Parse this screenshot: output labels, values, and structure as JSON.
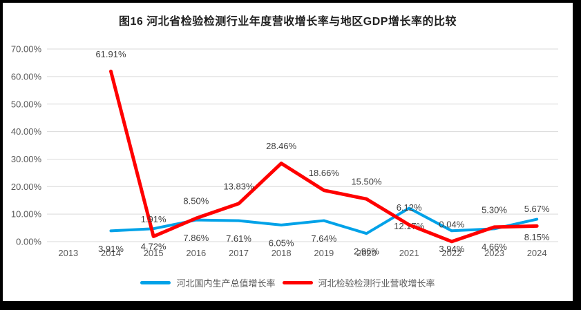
{
  "title": "图16 河北省检验检测行业年度营收增长率与地区GDP增长率的比较",
  "colors": {
    "gdp_line": "#00A2E8",
    "revenue_line": "#FF0000",
    "gridline": "#D9D9D9",
    "axis_text": "#595959",
    "data_label_text": "#3F3F3F",
    "title_text": "#1F1F1F",
    "frame": "#000000"
  },
  "chart_data": {
    "type": "line",
    "title": "图16 河北省检验检测行业年度营收增长率与地区GDP增长率的比较",
    "categories": [
      "2013",
      "2014",
      "2015",
      "2016",
      "2017",
      "2018",
      "2019",
      "2020",
      "2021",
      "2022",
      "2023",
      "2024"
    ],
    "series": [
      {
        "id": "gdp",
        "name": "河北国内生产总值增长率",
        "color": "#00A2E8",
        "values": [
          null,
          3.91,
          4.72,
          7.86,
          7.61,
          6.05,
          7.64,
          2.96,
          12.17,
          3.94,
          4.66,
          8.15
        ],
        "labels": [
          "",
          "3.91%",
          "4.72%",
          "7.86%",
          "7.61%",
          "6.05%",
          "7.64%",
          "2.96%",
          "12.17%",
          "3.94%",
          "4.66%",
          "8.15%"
        ],
        "label_position": "below"
      },
      {
        "id": "revenue",
        "name": "河北检验检测行业营收增长率",
        "color": "#FF0000",
        "values": [
          null,
          61.91,
          1.91,
          8.5,
          13.83,
          28.46,
          18.66,
          15.5,
          6.12,
          0.04,
          5.3,
          5.67
        ],
        "labels": [
          "",
          "61.91%",
          "1.91%",
          "8.50%",
          "13.83%",
          "28.46%",
          "18.66%",
          "15.50%",
          "6.12%",
          "0.04%",
          "5.30%",
          "5.67%"
        ],
        "label_position": "above"
      }
    ],
    "xlabel": "",
    "ylabel": "",
    "ylim": [
      0,
      70
    ],
    "ytick_step": 10,
    "ytick_labels": [
      "0.00%",
      "10.00%",
      "20.00%",
      "30.00%",
      "40.00%",
      "50.00%",
      "60.00%",
      "70.00%"
    ],
    "grid": true,
    "legend_position": "bottom"
  },
  "legend": {
    "items": [
      {
        "label": "河北国内生产总值增长率",
        "color": "#00A2E8"
      },
      {
        "label": "河北检验检测行业营收增长率",
        "color": "#FF0000"
      }
    ]
  }
}
